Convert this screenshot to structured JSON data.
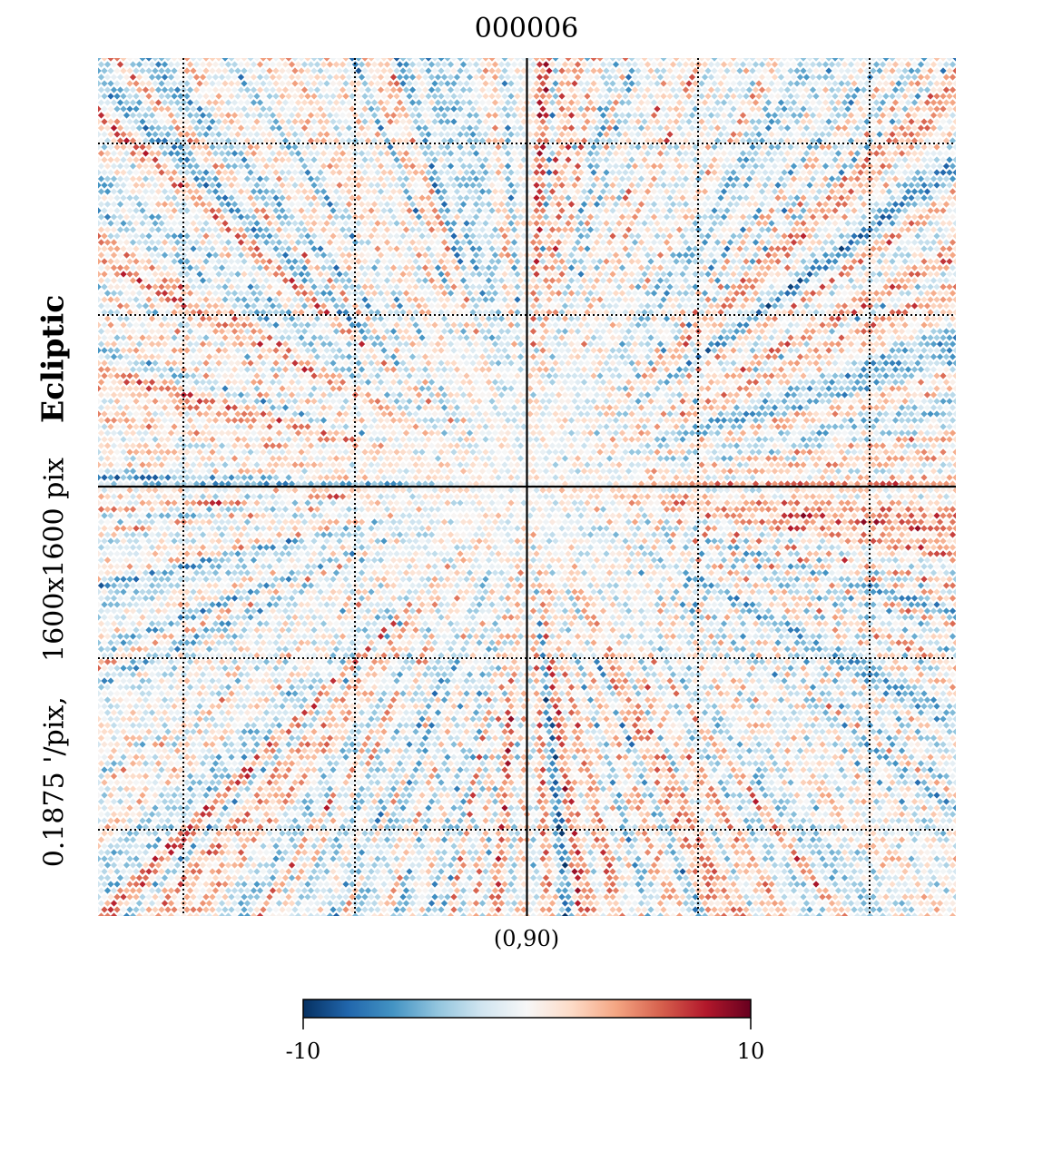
{
  "chart_data": {
    "type": "heatmap",
    "projection": "gnomonic",
    "title": "000006",
    "center_label": "(0,90)",
    "ylabel": {
      "resolution": "0.1875 '/pix,",
      "size": "1600x1600 pix",
      "coord": "Ecliptic"
    },
    "colorbar": {
      "min": -10,
      "max": 10,
      "min_label": "-10",
      "max_label": "10",
      "colormap": "RdBu_r",
      "colors": [
        "#053061",
        "#2166ac",
        "#4393c3",
        "#92c5de",
        "#d1e5f0",
        "#f7f7f7",
        "#fddbc7",
        "#f4a582",
        "#d6604d",
        "#b2182b",
        "#67001f"
      ]
    },
    "graticule": {
      "style": "dotted",
      "n_lines": 5,
      "center_axes": "solid"
    }
  }
}
